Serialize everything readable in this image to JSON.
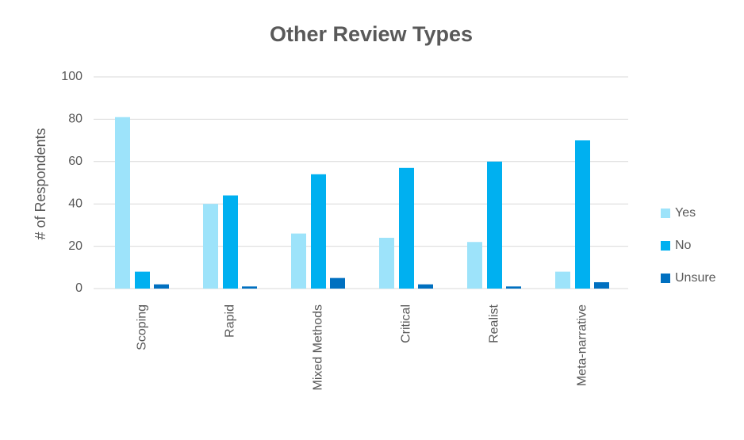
{
  "chart_data": {
    "type": "bar",
    "title": "Other Review Types",
    "y_label": "# of Respondents",
    "categories": [
      "Scoping",
      "Rapid",
      "Mixed Methods",
      "Critical",
      "Realist",
      "Meta-narrative"
    ],
    "series": [
      {
        "name": "Yes",
        "color": "#9de3fa",
        "values": [
          81,
          40,
          26,
          24,
          22,
          8
        ]
      },
      {
        "name": "No",
        "color": "#00b0f0",
        "values": [
          8,
          44,
          54,
          57,
          60,
          70
        ]
      },
      {
        "name": "Unsure",
        "color": "#0070c0",
        "values": [
          2,
          1,
          5,
          2,
          1,
          3
        ]
      }
    ],
    "ylim": [
      0,
      100
    ],
    "yticks": [
      0,
      20,
      40,
      60,
      80,
      100
    ],
    "grid": true,
    "legend": "right"
  }
}
